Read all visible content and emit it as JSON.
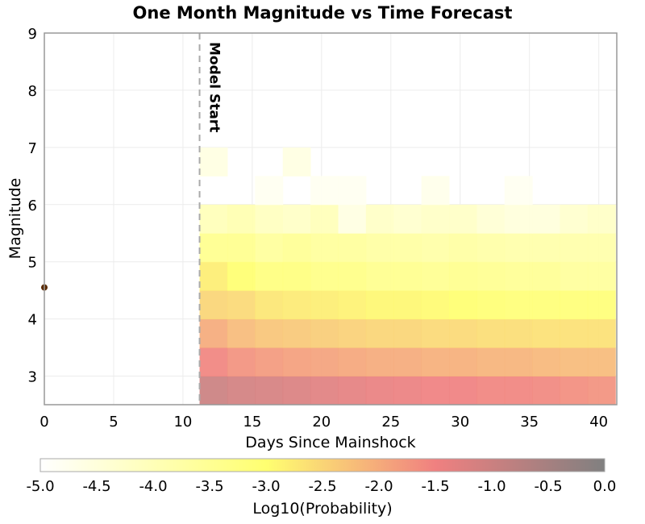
{
  "chart_data": {
    "type": "heatmap",
    "title": "One Month Magnitude vs Time Forecast",
    "xlabel": "Days Since Mainshock",
    "ylabel": "Magnitude",
    "xlim": [
      0,
      41.3
    ],
    "ylim": [
      2.5,
      9
    ],
    "xticks": [
      "0",
      "5",
      "10",
      "15",
      "20",
      "25",
      "30",
      "35",
      "40"
    ],
    "yticks": [
      "3",
      "4",
      "5",
      "6",
      "7",
      "8",
      "9"
    ],
    "grid": true,
    "annotation": {
      "text": "Model Start",
      "x": 11.2
    },
    "x_bin_start": 11.2,
    "x_bin_width": 2.0,
    "y_bin_edges": [
      2.5,
      3.0,
      3.5,
      4.0,
      4.5,
      5.0,
      5.5,
      6.0,
      6.5,
      7.0
    ],
    "values": [
      [
        -1.0,
        -1.1,
        -1.15,
        -1.2,
        -1.3,
        -1.35,
        -1.4,
        -1.45,
        -1.5,
        -1.5,
        -1.55,
        -1.55,
        -1.6,
        -1.65,
        -1.7
      ],
      [
        -1.55,
        -1.7,
        -1.8,
        -1.85,
        -1.9,
        -1.95,
        -2.0,
        -2.0,
        -2.05,
        -2.05,
        -2.1,
        -2.1,
        -2.15,
        -2.2,
        -2.2
      ],
      [
        -2.0,
        -2.2,
        -2.3,
        -2.35,
        -2.4,
        -2.45,
        -2.5,
        -2.5,
        -2.55,
        -2.55,
        -2.6,
        -2.6,
        -2.65,
        -2.65,
        -2.65
      ],
      [
        -2.5,
        -2.55,
        -2.7,
        -2.75,
        -2.8,
        -2.85,
        -2.9,
        -2.9,
        -2.95,
        -3.0,
        -3.05,
        -3.1,
        -3.1,
        -3.1,
        -3.1
      ],
      [
        -2.8,
        -3.0,
        -3.2,
        -3.2,
        -3.3,
        -3.3,
        -3.4,
        -3.4,
        -3.45,
        -3.4,
        -3.45,
        -3.5,
        -3.5,
        -3.6,
        -3.6
      ],
      [
        -3.4,
        -3.4,
        -3.6,
        -3.5,
        -3.6,
        -3.6,
        -3.7,
        -3.7,
        -3.75,
        -3.7,
        -3.75,
        -3.8,
        -3.8,
        -3.8,
        -3.8
      ],
      [
        -4.0,
        -3.9,
        -4.1,
        -4.2,
        -4.0,
        -4.6,
        -4.2,
        -4.3,
        -4.2,
        -4.2,
        -4.4,
        -4.5,
        -4.5,
        -4.3,
        -4.2
      ],
      [
        null,
        null,
        -4.8,
        null,
        -4.8,
        -4.8,
        null,
        null,
        -4.7,
        null,
        null,
        -4.8,
        null,
        null,
        null
      ],
      [
        -4.6,
        null,
        null,
        -4.6,
        null,
        null,
        null,
        null,
        null,
        null,
        null,
        null,
        null,
        null,
        null
      ]
    ],
    "observed_points": [
      {
        "x": 0,
        "y": 4.55
      }
    ],
    "colorbar": {
      "label": "Log10(Probability)",
      "range": [
        -5,
        0
      ],
      "ticks": [
        "-5.0",
        "-4.5",
        "-4.0",
        "-3.5",
        "-3.0",
        "-2.5",
        "-2.0",
        "-1.5",
        "-1.0",
        "-0.5",
        "0.0"
      ],
      "stops": [
        {
          "value": -5.0,
          "color": "#ffffff"
        },
        {
          "value": -3.0,
          "color": "#ffff70"
        },
        {
          "value": -1.5,
          "color": "#f08080"
        },
        {
          "value": 0.0,
          "color": "#808080"
        }
      ]
    },
    "point_color": "#5a2a00"
  }
}
